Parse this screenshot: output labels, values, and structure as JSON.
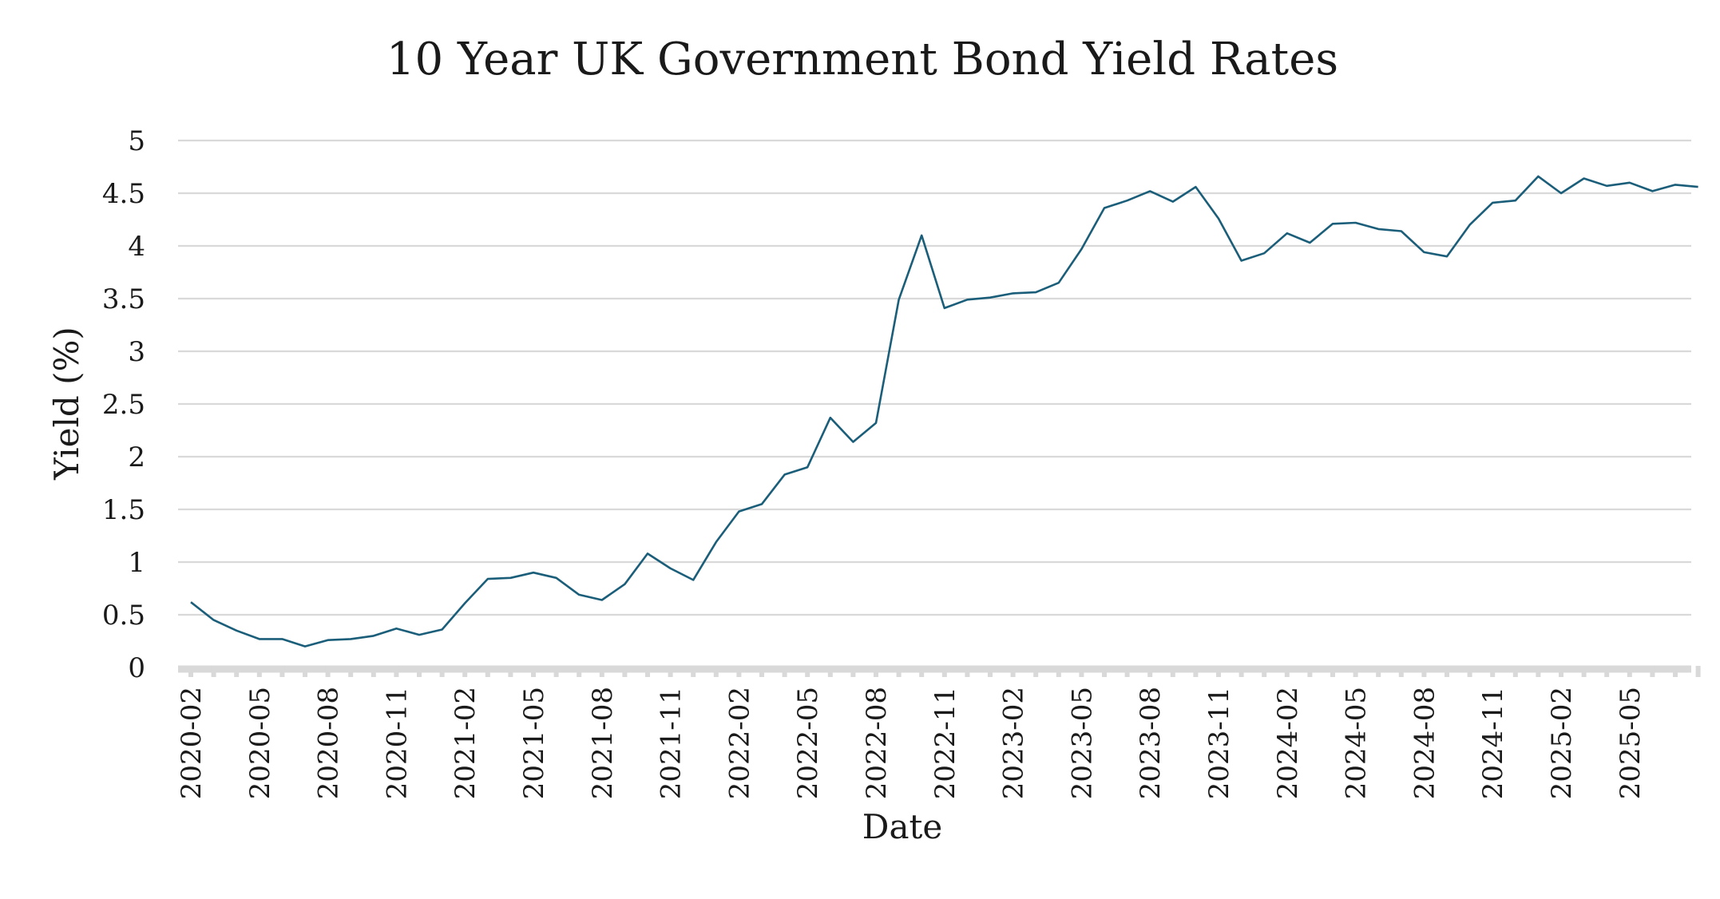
{
  "chart_data": {
    "type": "line",
    "title": "10 Year UK Government Bond Yield Rates",
    "xlabel": "Date",
    "ylabel": "Yield (%)",
    "ylim": [
      0,
      5
    ],
    "yticks": [
      "0",
      "0.5",
      "1",
      "1.5",
      "2",
      "2.5",
      "3",
      "3.5",
      "4",
      "4.5",
      "5"
    ],
    "xticks": [
      "2020-02",
      "2020-05",
      "2020-08",
      "2020-11",
      "2021-02",
      "2021-05",
      "2021-08",
      "2021-11",
      "2022-02",
      "2022-05",
      "2022-08",
      "2022-11",
      "2023-02",
      "2023-05",
      "2023-08",
      "2023-11",
      "2024-02",
      "2024-05",
      "2024-08",
      "2024-11",
      "2025-02",
      "2025-05"
    ],
    "grid": true,
    "line_color": "#1b5e7a",
    "series": [
      {
        "x": [
          "2020-02",
          "2020-03",
          "2020-04",
          "2020-05",
          "2020-06",
          "2020-07",
          "2020-08",
          "2020-09",
          "2020-10",
          "2020-11",
          "2020-12",
          "2021-01",
          "2021-02",
          "2021-03",
          "2021-04",
          "2021-05",
          "2021-06",
          "2021-07",
          "2021-08",
          "2021-09",
          "2021-10",
          "2021-11",
          "2021-12",
          "2022-01",
          "2022-02",
          "2022-03",
          "2022-04",
          "2022-05",
          "2022-06",
          "2022-07",
          "2022-08",
          "2022-09",
          "2022-10",
          "2022-11",
          "2022-12",
          "2023-01",
          "2023-02",
          "2023-03",
          "2023-04",
          "2023-05",
          "2023-06",
          "2023-07",
          "2023-08",
          "2023-09",
          "2023-10",
          "2023-11",
          "2023-12",
          "2024-01",
          "2024-02",
          "2024-03",
          "2024-04",
          "2024-05",
          "2024-06",
          "2024-07",
          "2024-08",
          "2024-09",
          "2024-10",
          "2024-11",
          "2024-12",
          "2025-01",
          "2025-02",
          "2025-03",
          "2025-04",
          "2025-05",
          "2025-06",
          "2025-07",
          "2025-08"
        ],
        "y": [
          0.62,
          0.45,
          0.35,
          0.27,
          0.27,
          0.2,
          0.26,
          0.27,
          0.3,
          0.37,
          0.31,
          0.36,
          0.61,
          0.84,
          0.85,
          0.9,
          0.85,
          0.69,
          0.64,
          0.79,
          1.08,
          0.94,
          0.83,
          1.19,
          1.48,
          1.55,
          1.83,
          1.9,
          2.37,
          2.14,
          2.32,
          3.49,
          4.1,
          3.41,
          3.49,
          3.51,
          3.55,
          3.56,
          3.65,
          3.97,
          4.36,
          4.43,
          4.52,
          4.42,
          4.56,
          4.26,
          3.86,
          3.93,
          4.12,
          4.03,
          4.21,
          4.22,
          4.16,
          4.14,
          3.94,
          3.9,
          4.2,
          4.41,
          4.43,
          4.66,
          4.5,
          4.64,
          4.57,
          4.6,
          4.52,
          4.58,
          4.56
        ]
      }
    ]
  }
}
